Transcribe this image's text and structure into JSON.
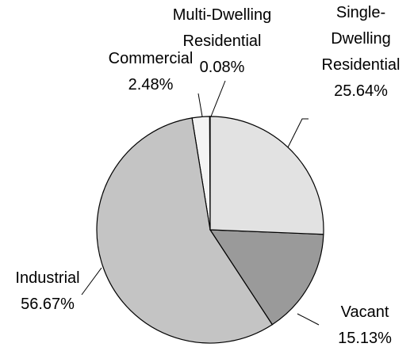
{
  "chart_data": {
    "type": "pie",
    "categories": [
      "Single-Dwelling Residential",
      "Vacant",
      "Industrial",
      "Commercial",
      "Multi-Dwelling Residential"
    ],
    "values": [
      25.64,
      15.13,
      56.67,
      2.48,
      0.08
    ],
    "value_labels": [
      "25.64%",
      "15.13%",
      "56.67%",
      "2.48%",
      "0.08%"
    ],
    "colors": [
      "#e2e2e2",
      "#9a9a9a",
      "#c4c4c4",
      "#f4f4f4",
      "#ffffff"
    ]
  }
}
